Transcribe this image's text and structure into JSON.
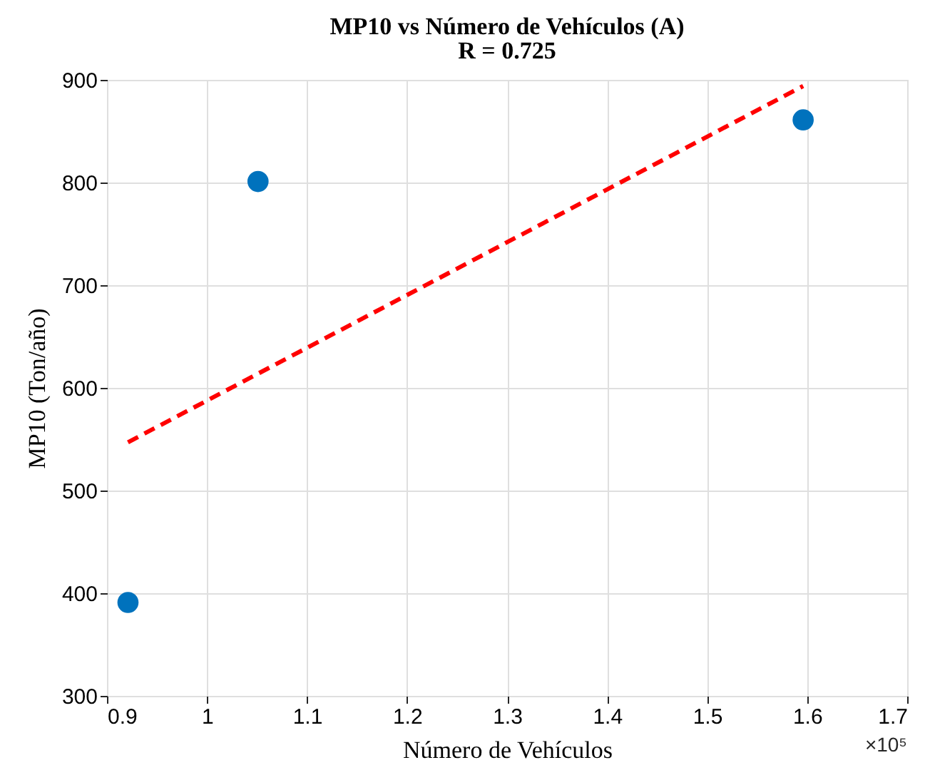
{
  "chart_data": {
    "type": "scatter",
    "title": "MP10 vs Número de Vehículos (A)",
    "subtitle": "R = 0.725",
    "xlabel": "Número de Vehículos",
    "ylabel": "MP10 (Ton/año)",
    "xlim": [
      0.9,
      1.7
    ],
    "xticks": [
      0.9,
      1,
      1.1,
      1.2,
      1.3,
      1.4,
      1.5,
      1.6,
      1.7
    ],
    "ylim": [
      300,
      900
    ],
    "yticks": [
      300,
      400,
      500,
      600,
      700,
      800,
      900
    ],
    "grid": true,
    "series": [
      {
        "color": "#0072bd",
        "marker": "circle",
        "x": [
          0.921,
          1.051,
          1.596
        ],
        "values": [
          391,
          801,
          861
        ]
      },
      {
        "type": "line",
        "color": "#ff0000",
        "line_style": "dashed",
        "marker": "none",
        "x": [
          0.921,
          1.596
        ],
        "values": [
          547,
          894
        ]
      }
    ],
    "annotations": [
      "×10⁵"
    ]
  }
}
